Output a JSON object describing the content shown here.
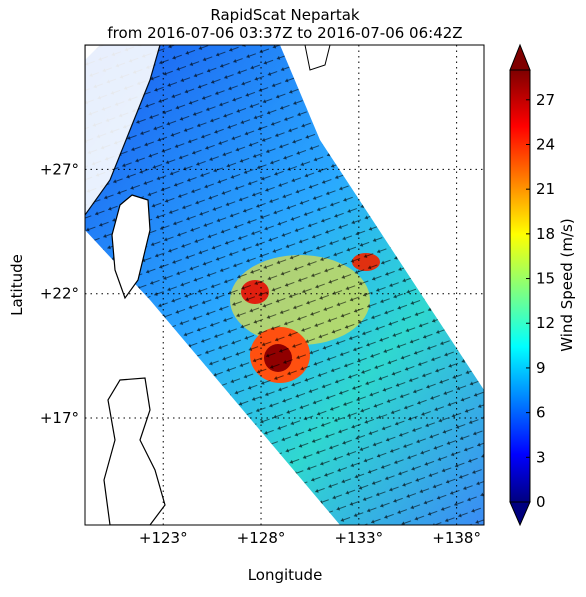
{
  "chart_data": {
    "type": "map",
    "title": "RapidScat Nepartak",
    "subtitle": "from 2016-07-06 03:37Z to 2016-07-06 06:42Z",
    "x_label": "Longitude",
    "y_label": "Latitude",
    "xlim": [
      119,
      139.4
    ],
    "ylim": [
      12.7,
      32
    ],
    "xticks": [
      {
        "value": 123,
        "label": "+123°"
      },
      {
        "value": 128,
        "label": "+128°"
      },
      {
        "value": 133,
        "label": "+133°"
      },
      {
        "value": 138,
        "label": "+138°"
      }
    ],
    "yticks": [
      {
        "value": 17,
        "label": "+17°"
      },
      {
        "value": 22,
        "label": "+22°"
      },
      {
        "value": 27,
        "label": "+27°"
      }
    ],
    "grid": true,
    "colorbar": {
      "label": "Wind Speed (m/s)",
      "lim": [
        0,
        29
      ],
      "ticks": [
        0,
        3,
        6,
        9,
        12,
        15,
        18,
        21,
        24,
        27
      ]
    }
  }
}
